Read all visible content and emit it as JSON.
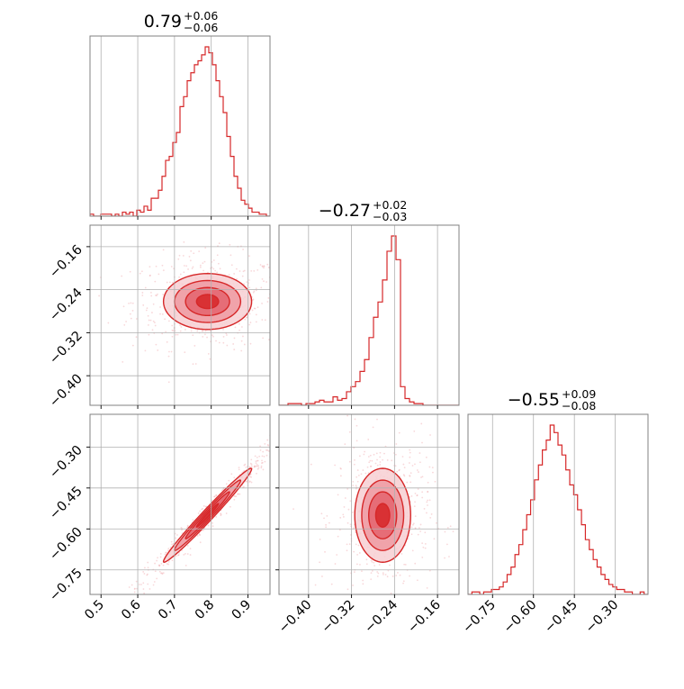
{
  "colors": {
    "accent": "#d62728",
    "fill_light": "#f7cfd2",
    "fill_mid": "#ee9aa1",
    "fill_dark": "#e4646e",
    "grid": "#b0b0b0",
    "frame": "#808080",
    "scatter": "#f0a8ae"
  },
  "titles": [
    {
      "value": "0.79",
      "upper": "+0.06",
      "lower": "−0.06"
    },
    {
      "value": "−0.27",
      "upper": "+0.02",
      "lower": "−0.03"
    },
    {
      "value": "−0.55",
      "upper": "+0.09",
      "lower": "−0.08"
    }
  ],
  "chart_data": {
    "type": "corner",
    "parameters": [
      {
        "median": 0.79,
        "plus": 0.06,
        "minus": 0.06,
        "range": [
          0.47,
          0.96
        ],
        "ticks": [
          0.5,
          0.6,
          0.7,
          0.8,
          0.9
        ],
        "tick_labels": [
          "0.5",
          "0.6",
          "0.7",
          "0.8",
          "0.9"
        ]
      },
      {
        "median": -0.27,
        "plus": 0.02,
        "minus": 0.03,
        "range": [
          -0.455,
          -0.12
        ],
        "ticks": [
          -0.4,
          -0.32,
          -0.24,
          -0.16
        ],
        "tick_labels": [
          "−0.40",
          "−0.32",
          "−0.24",
          "−0.16"
        ]
      },
      {
        "median": -0.55,
        "plus": 0.09,
        "minus": 0.08,
        "range": [
          -0.84,
          -0.18
        ],
        "ticks": [
          -0.75,
          -0.6,
          -0.45,
          -0.3
        ],
        "tick_labels": [
          "−0.75",
          "−0.60",
          "−0.45",
          "−0.30"
        ]
      }
    ],
    "histograms": [
      {
        "edges": [
          0.47,
          0.96
        ],
        "counts": [
          1,
          0,
          0,
          1,
          1,
          1,
          0,
          1,
          0,
          2,
          1,
          2,
          0,
          3,
          2,
          5,
          3,
          9,
          9,
          13,
          20,
          28,
          30,
          37,
          42,
          55,
          60,
          68,
          72,
          76,
          78,
          81,
          85,
          82,
          76,
          68,
          60,
          52,
          40,
          30,
          20,
          14,
          8,
          6,
          4,
          2,
          2,
          1,
          1,
          0
        ]
      },
      {
        "edges": [
          -0.455,
          -0.12
        ],
        "counts": [
          0,
          0,
          1,
          1,
          1,
          0,
          1,
          1,
          2,
          3,
          2,
          2,
          5,
          3,
          4,
          8,
          11,
          14,
          20,
          27,
          40,
          52,
          61,
          74,
          91,
          100,
          86,
          11,
          4,
          2,
          1,
          1,
          0,
          0,
          0,
          0,
          0,
          0,
          0,
          0
        ]
      },
      {
        "edges": [
          -0.84,
          -0.18
        ],
        "counts": [
          0,
          1,
          1,
          0,
          1,
          1,
          2,
          2,
          3,
          5,
          8,
          11,
          16,
          20,
          26,
          32,
          38,
          46,
          52,
          58,
          62,
          68,
          65,
          60,
          56,
          50,
          44,
          40,
          34,
          28,
          22,
          18,
          14,
          11,
          8,
          6,
          4,
          3,
          2,
          2,
          1,
          1,
          0,
          0,
          1,
          0
        ]
      }
    ],
    "contour_levels": [
      0.118,
      0.393,
      0.675,
      0.864
    ],
    "pairs": [
      {
        "x": 0,
        "y": 1,
        "mean": [
          0.79,
          -0.262
        ],
        "sd": [
          0.06,
          0.026
        ],
        "rho": 0.0
      },
      {
        "x": 0,
        "y": 2,
        "mean": [
          0.79,
          -0.55
        ],
        "sd": [
          0.06,
          0.086
        ],
        "rho": 0.985
      },
      {
        "x": 1,
        "y": 2,
        "mean": [
          -0.262,
          -0.55
        ],
        "sd": [
          0.026,
          0.086
        ],
        "rho": 0.0
      }
    ],
    "xlabel": "",
    "ylabel": "",
    "grid": true
  }
}
